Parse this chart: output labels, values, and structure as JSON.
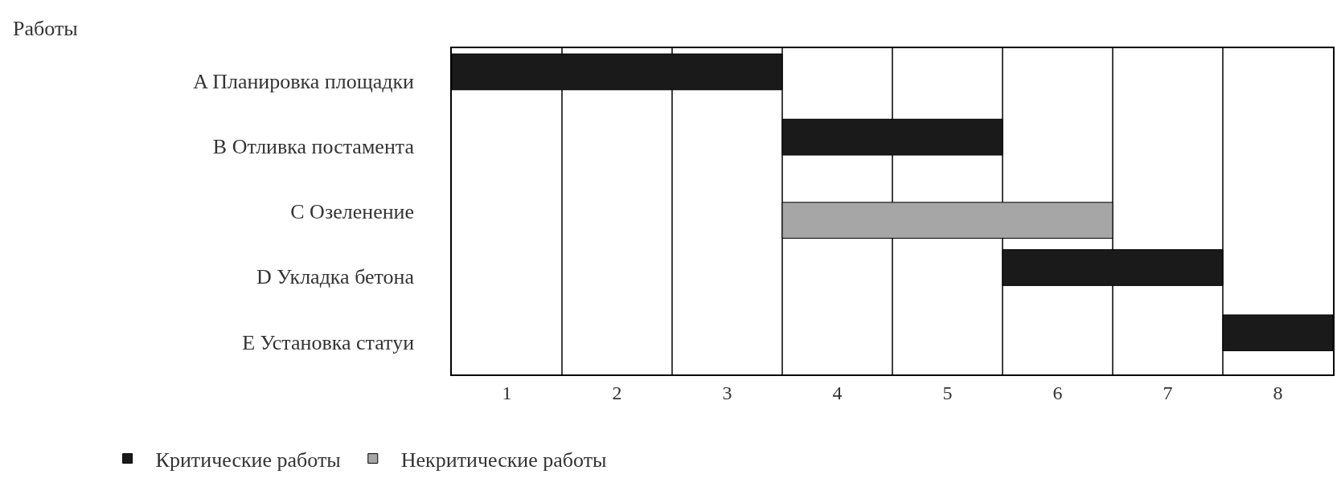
{
  "chart_data": {
    "type": "bar",
    "orientation": "horizontal",
    "annotations": [
      "Работы"
    ],
    "categories": [
      "A Планировка площадки",
      "B Отливка постамента",
      "C Озеленение",
      "D Укладка бетона",
      "E Установка статуи"
    ],
    "series": [
      {
        "name": "Критические работы",
        "color": "#1a1a1a",
        "values": [
          3,
          2,
          null,
          2,
          1
        ],
        "base": [
          0,
          3,
          null,
          5,
          7
        ]
      },
      {
        "name": "Некритические работы",
        "color": "#a6a6a6",
        "values": [
          null,
          null,
          3,
          null,
          null
        ],
        "base": [
          null,
          null,
          3,
          null,
          null
        ]
      }
    ],
    "xlim": [
      0,
      8
    ],
    "xticks": [
      {
        "value": 0.5,
        "label": "1"
      },
      {
        "value": 1.5,
        "label": "2"
      },
      {
        "value": 2.5,
        "label": "3"
      },
      {
        "value": 3.5,
        "label": "4"
      },
      {
        "value": 4.5,
        "label": "5"
      },
      {
        "value": 5.5,
        "label": "6"
      },
      {
        "value": 6.5,
        "label": "7"
      },
      {
        "value": 7.5,
        "label": "8"
      }
    ],
    "ref_lines": [
      {
        "axis": "x",
        "value": 1
      },
      {
        "axis": "x",
        "value": 2
      },
      {
        "axis": "x",
        "value": 3
      },
      {
        "axis": "x",
        "value": 4
      },
      {
        "axis": "x",
        "value": 5
      },
      {
        "axis": "x",
        "value": 6
      },
      {
        "axis": "x",
        "value": 7
      }
    ],
    "grid": false,
    "legend": "bottom left"
  }
}
